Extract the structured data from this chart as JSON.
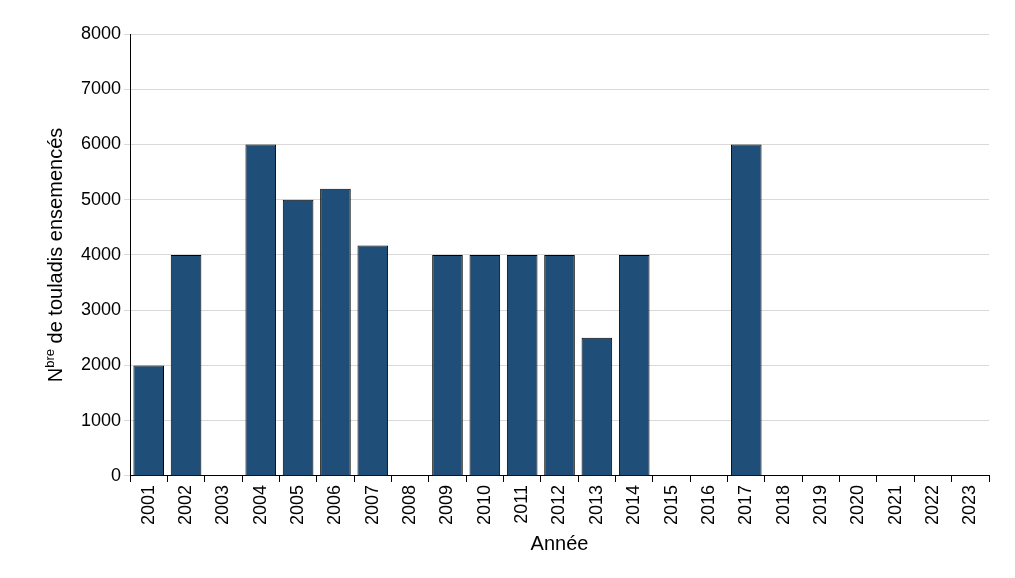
{
  "chart_data": {
    "type": "bar",
    "xlabel": "Année",
    "ylabel": "N$^{bre}$ de touladis ensemencés",
    "categories": [
      "2001",
      "2002",
      "2003",
      "2004",
      "2005",
      "2006",
      "2007",
      "2008",
      "2009",
      "2010",
      "2011",
      "2012",
      "2013",
      "2014",
      "2015",
      "2016",
      "2017",
      "2018",
      "2019",
      "2020",
      "2021",
      "2022",
      "2023"
    ],
    "values": [
      2000,
      4000,
      0,
      6000,
      5000,
      5200,
      4170,
      0,
      4000,
      4000,
      4000,
      4000,
      2500,
      4000,
      0,
      0,
      6000,
      0,
      0,
      0,
      0,
      0,
      0
    ],
    "color": "#1f4e79",
    "ylim": [
      0,
      8000
    ],
    "yticks": [
      0,
      1000,
      2000,
      3000,
      4000,
      5000,
      6000,
      7000,
      8000
    ],
    "grid": "y",
    "legend": false
  }
}
